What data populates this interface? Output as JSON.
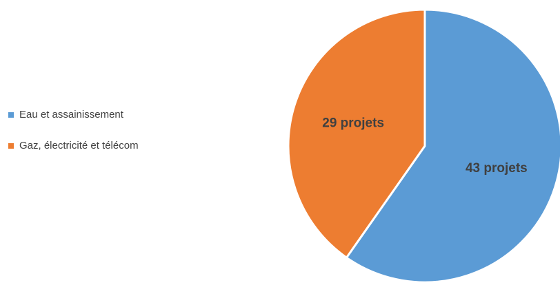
{
  "chart_data": {
    "type": "pie",
    "categories": [
      "Eau et assainissement",
      "Gaz, électricité et télécom"
    ],
    "values": [
      43,
      29
    ],
    "value_labels": [
      "43 projets",
      "29 projets"
    ],
    "colors": [
      "#5b9bd5",
      "#ed7d31"
    ],
    "legend": "left"
  }
}
